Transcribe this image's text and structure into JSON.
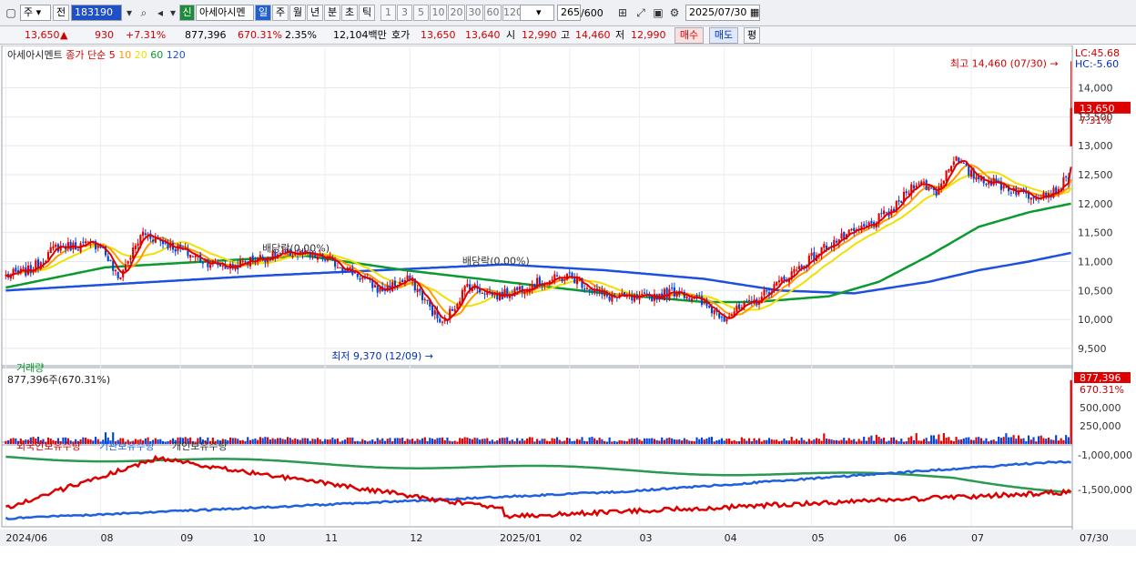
{
  "toolbar": {
    "market": "주",
    "prev": "전",
    "code": "183190",
    "name": "아세아시멘",
    "sin": "신",
    "periods": [
      "일",
      "주",
      "월",
      "년",
      "분",
      "초",
      "틱"
    ],
    "intervals": [
      "1",
      "3",
      "5",
      "10",
      "20",
      "30",
      "60",
      "120"
    ],
    "count": "265",
    "count_total": "/600",
    "date": "2025/07/30"
  },
  "quote": {
    "price": "13,650",
    "arrow": "▲",
    "change": "930",
    "pct": "+7.31%",
    "volume": "877,396",
    "vol_pct": "670.31%",
    "turnover": "2.35%",
    "amount": "12,104백만",
    "ask_label": "호가",
    "ask": "13,650",
    "bid": "13,640",
    "open_label": "시",
    "open": "12,990",
    "high_label": "고",
    "high": "14,460",
    "low_label": "저",
    "low": "12,990",
    "buy": "매수",
    "sell": "매도",
    "even": "평"
  },
  "colors": {
    "up": "#e00000",
    "down": "#0044dd",
    "ma5": "#e00000",
    "ma10": "#ff9a00",
    "ma20": "#f0e000",
    "ma60": "#0a9a30",
    "ma120": "#1e50e0",
    "foreign": "#dd0000",
    "inst": "#2060e0",
    "indiv": "#2a9a50"
  },
  "chart_data": {
    "type": "candlestick",
    "legend": {
      "name": "아세아시멘트",
      "item": "종가 단순",
      "periods": [
        "5",
        "10",
        "20",
        "60",
        "120"
      ]
    },
    "ylim": [
      9200,
      14700
    ],
    "y_ticks": [
      "9,500",
      "10,000",
      "10,500",
      "11,000",
      "11,500",
      "12,000",
      "12,500",
      "13,000",
      "13,500",
      "14,000"
    ],
    "y_tick_values": [
      9500,
      10000,
      10500,
      11000,
      11500,
      12000,
      12500,
      13000,
      13500,
      14000
    ],
    "x_ticks": [
      "2024/06",
      "08",
      "09",
      "10",
      "11",
      "12",
      "2025/01",
      "02",
      "03",
      "04",
      "05",
      "06",
      "07",
      "07/30"
    ],
    "x_tick_index": [
      0,
      38,
      70,
      99,
      128,
      162,
      198,
      226,
      254,
      288,
      323,
      356,
      387,
      428
    ],
    "n": 428,
    "anchors_close": [
      [
        0,
        10750
      ],
      [
        10,
        10850
      ],
      [
        20,
        11250
      ],
      [
        38,
        11300
      ],
      [
        45,
        10700
      ],
      [
        55,
        11500
      ],
      [
        70,
        11200
      ],
      [
        80,
        11000
      ],
      [
        90,
        10900
      ],
      [
        100,
        11050
      ],
      [
        115,
        11150
      ],
      [
        128,
        11050
      ],
      [
        140,
        10800
      ],
      [
        150,
        10500
      ],
      [
        162,
        10700
      ],
      [
        175,
        9900
      ],
      [
        185,
        10600
      ],
      [
        198,
        10400
      ],
      [
        210,
        10600
      ],
      [
        226,
        10750
      ],
      [
        240,
        10400
      ],
      [
        254,
        10350
      ],
      [
        270,
        10500
      ],
      [
        288,
        10050
      ],
      [
        300,
        10300
      ],
      [
        315,
        10800
      ],
      [
        330,
        11300
      ],
      [
        345,
        11600
      ],
      [
        356,
        11900
      ],
      [
        365,
        12400
      ],
      [
        373,
        12200
      ],
      [
        380,
        12800
      ],
      [
        387,
        12500
      ],
      [
        400,
        12300
      ],
      [
        410,
        12150
      ],
      [
        420,
        12200
      ],
      [
        426,
        12450
      ],
      [
        427,
        13650
      ]
    ],
    "last_candle": {
      "open": 12990,
      "high": 14460,
      "low": 12990,
      "close": 13650
    },
    "ma60_pts": [
      [
        0,
        10550
      ],
      [
        40,
        10900
      ],
      [
        80,
        11000
      ],
      [
        120,
        11100
      ],
      [
        160,
        10850
      ],
      [
        200,
        10650
      ],
      [
        240,
        10450
      ],
      [
        280,
        10300
      ],
      [
        300,
        10300
      ],
      [
        330,
        10400
      ],
      [
        350,
        10650
      ],
      [
        370,
        11100
      ],
      [
        390,
        11600
      ],
      [
        410,
        11850
      ],
      [
        427,
        12000
      ]
    ],
    "ma120_pts": [
      [
        0,
        10500
      ],
      [
        40,
        10600
      ],
      [
        100,
        10750
      ],
      [
        150,
        10850
      ],
      [
        200,
        10950
      ],
      [
        240,
        10850
      ],
      [
        280,
        10700
      ],
      [
        310,
        10500
      ],
      [
        340,
        10450
      ],
      [
        370,
        10650
      ],
      [
        390,
        10850
      ],
      [
        410,
        11000
      ],
      [
        427,
        11150
      ]
    ],
    "annotations": {
      "high": "최고 14,460 (07/30)",
      "low": "최저 9,370 (12/09)",
      "div1": "배당락(0.00%)",
      "div2": "배당락(0.00%)"
    },
    "right_labels": {
      "lc": "LC:45.68",
      "hc": "HC:-5.60",
      "price": "13,650",
      "pct": "7.31%"
    },
    "volume": {
      "title": "거래량",
      "value": "877,396주(670.31%)",
      "last": 877396,
      "ylim": [
        0,
        950000
      ],
      "ticks": [
        "250,000",
        "500,000"
      ],
      "tick_values": [
        250000,
        500000
      ],
      "label_value": "877,396",
      "label_pct": "670.31%"
    },
    "holdings": {
      "series": [
        "외국인보유수량",
        "기관보유수량",
        "개인보유수량"
      ],
      "ticks": [
        "-1,000,000",
        "-1,500,000"
      ]
    }
  }
}
